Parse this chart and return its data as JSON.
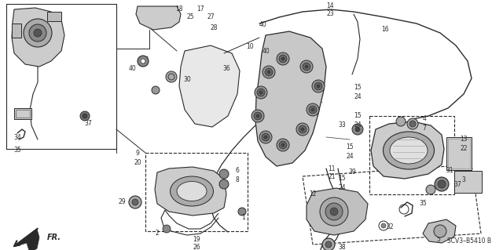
{
  "background_color": "#ffffff",
  "diagram_code": "SCV3–B5410 B",
  "line_color": "#2a2a2a",
  "fig_w": 6.4,
  "fig_h": 3.19,
  "dpi": 100
}
